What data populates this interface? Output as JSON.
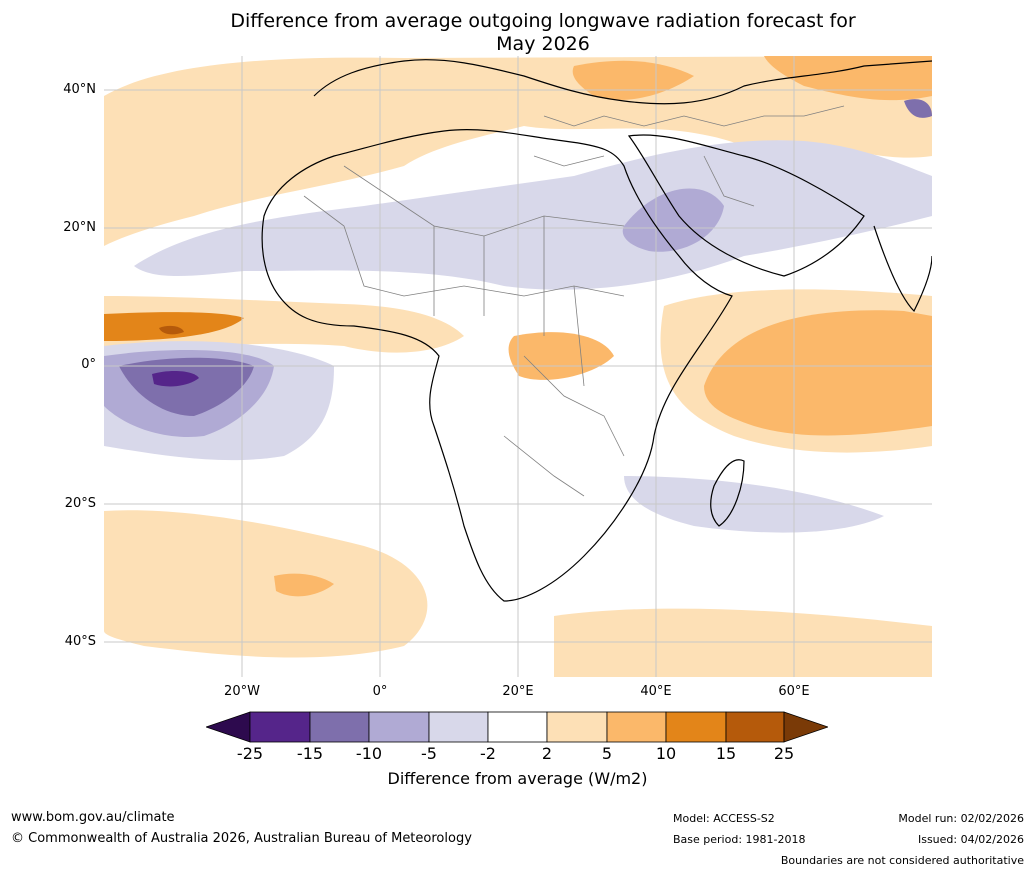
{
  "title": {
    "line1": "Difference from average outgoing longwave radiation forecast for",
    "line2": "May 2026"
  },
  "axes": {
    "lat_labels": [
      "40°N",
      "20°N",
      "0°",
      "20°S",
      "40°S"
    ],
    "lon_labels": [
      "20°W",
      "0°",
      "20°E",
      "40°E",
      "60°E"
    ]
  },
  "colorbar": {
    "ticks": [
      "-25",
      "-15",
      "-10",
      "-5",
      "-2",
      "2",
      "5",
      "10",
      "15",
      "25"
    ],
    "label": "Difference from average (W/m2)",
    "colors": {
      "under": "#2d0a4e",
      "c_25_15": "#55258a",
      "c_15_10": "#7e6fac",
      "c_10_5": "#b0aad4",
      "c_5_2": "#d8d8ea",
      "c_2_2": "#ffffff",
      "c2_5": "#fde0b6",
      "c5_10": "#fbb86a",
      "c10_15": "#e38519",
      "c15_25": "#b55a0b",
      "over": "#7a3a07"
    }
  },
  "footer": {
    "website": "www.bom.gov.au/climate",
    "copyright": "© Commonwealth of Australia 2026, Australian Bureau of Meteorology",
    "model": "Model: ACCESS-S2",
    "base_period": "Base period: 1981-2018",
    "model_run": "Model run: 02/02/2026",
    "issued": "Issued: 04/02/2026",
    "disclaimer": "Boundaries are not considered authoritative"
  }
}
